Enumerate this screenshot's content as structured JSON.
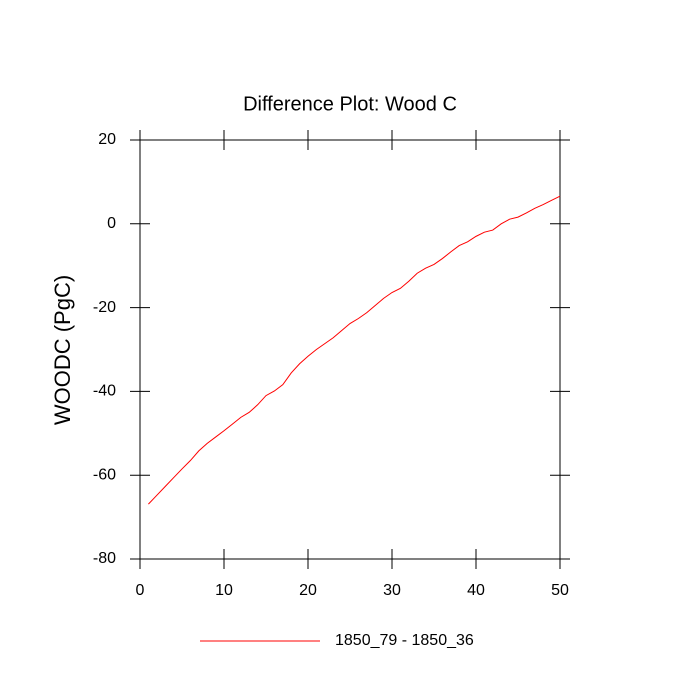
{
  "chart_data": {
    "type": "line",
    "title": "Difference Plot: Wood C",
    "y_label": "WOODC  (PgC)",
    "x": [
      1,
      2,
      3,
      4,
      5,
      6,
      7,
      8,
      9,
      10,
      11,
      12,
      13,
      14,
      15,
      16,
      17,
      18,
      19,
      20,
      21,
      22,
      23,
      24,
      25,
      26,
      27,
      28,
      29,
      30,
      31,
      32,
      33,
      34,
      35,
      36,
      37,
      38,
      39,
      40,
      41,
      42,
      43,
      44,
      45,
      46,
      47,
      48,
      49,
      50
    ],
    "series": [
      {
        "name": "1850_79 - 1850_36",
        "color": "#ff0000",
        "values": [
          -66.9,
          -64.8,
          -62.7,
          -60.6,
          -58.5,
          -56.5,
          -54.2,
          -52.4,
          -50.9,
          -49.4,
          -47.8,
          -46.2,
          -45.0,
          -43.2,
          -41.0,
          -39.9,
          -38.4,
          -35.6,
          -33.4,
          -31.6,
          -30.0,
          -28.6,
          -27.2,
          -25.5,
          -23.8,
          -22.6,
          -21.2,
          -19.5,
          -17.8,
          -16.4,
          -15.4,
          -13.7,
          -11.8,
          -10.6,
          -9.7,
          -8.3,
          -6.7,
          -5.2,
          -4.3,
          -3.0,
          -2.0,
          -1.5,
          0.0,
          1.1,
          1.6,
          2.6,
          3.7,
          4.6,
          5.6,
          6.6
        ]
      }
    ],
    "xlim": [
      0,
      50
    ],
    "xticks": [
      0,
      10,
      20,
      30,
      40,
      50
    ],
    "ylim": [
      -80,
      20
    ],
    "yticks": [
      -80,
      -60,
      -40,
      -20,
      0,
      20
    ]
  }
}
